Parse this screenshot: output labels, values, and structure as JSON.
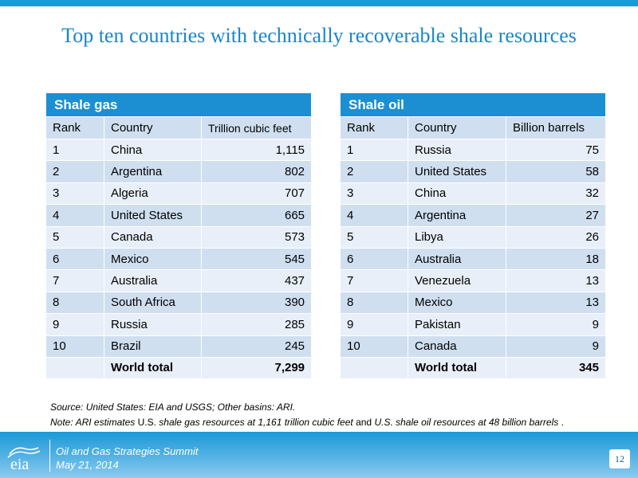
{
  "title": "Top ten countries with technically recoverable shale resources",
  "gas": {
    "title": "Shale gas",
    "headers": [
      "Rank",
      "Country",
      "Trillion cubic feet"
    ],
    "rows": [
      [
        "1",
        "China",
        "1,115"
      ],
      [
        "2",
        "Argentina",
        "802"
      ],
      [
        "3",
        "Algeria",
        "707"
      ],
      [
        "4",
        "United States",
        "665"
      ],
      [
        "5",
        "Canada",
        "573"
      ],
      [
        "6",
        "Mexico",
        "545"
      ],
      [
        "7",
        "Australia",
        "437"
      ],
      [
        "8",
        "South Africa",
        "390"
      ],
      [
        "9",
        "Russia",
        "285"
      ],
      [
        "10",
        "Brazil",
        "245"
      ]
    ],
    "total_label": "World total",
    "total_value": "7,299"
  },
  "oil": {
    "title": "Shale oil",
    "headers": [
      "Rank",
      "Country",
      "Billion barrels"
    ],
    "rows": [
      [
        "1",
        "Russia",
        "75"
      ],
      [
        "2",
        "United States",
        "58"
      ],
      [
        "3",
        "China",
        "32"
      ],
      [
        "4",
        "Argentina",
        "27"
      ],
      [
        "5",
        "Libya",
        "26"
      ],
      [
        "6",
        "Australia",
        "18"
      ],
      [
        "7",
        "Venezuela",
        "13"
      ],
      [
        "8",
        "Mexico",
        "13"
      ],
      [
        "9",
        "Pakistan",
        "9"
      ],
      [
        "10",
        "Canada",
        "9"
      ]
    ],
    "total_label": "World total",
    "total_value": "345"
  },
  "source": "Source:  United States:  EIA and USGS; Other basins: ARI.",
  "note": {
    "part1": "Note: ARI estimates ",
    "part2": "U.S.",
    "part3": " shale gas resources at 1,161 trillion cubic feet",
    "part4": " and ",
    "part5": "U.S. shale oil resources at 48 billion barrels",
    "part6": " ."
  },
  "footer": {
    "logo_text": "eia",
    "line1": "Oil and Gas Strategies Summit",
    "line2": "May 21, 2014",
    "page_number": "12"
  },
  "colors": {
    "accent": "#1b9ad6",
    "table_header": "#1b8fd2",
    "title_text": "#1a86c8",
    "row_light": "#e8eff8",
    "row_dark": "#cfdff0"
  }
}
